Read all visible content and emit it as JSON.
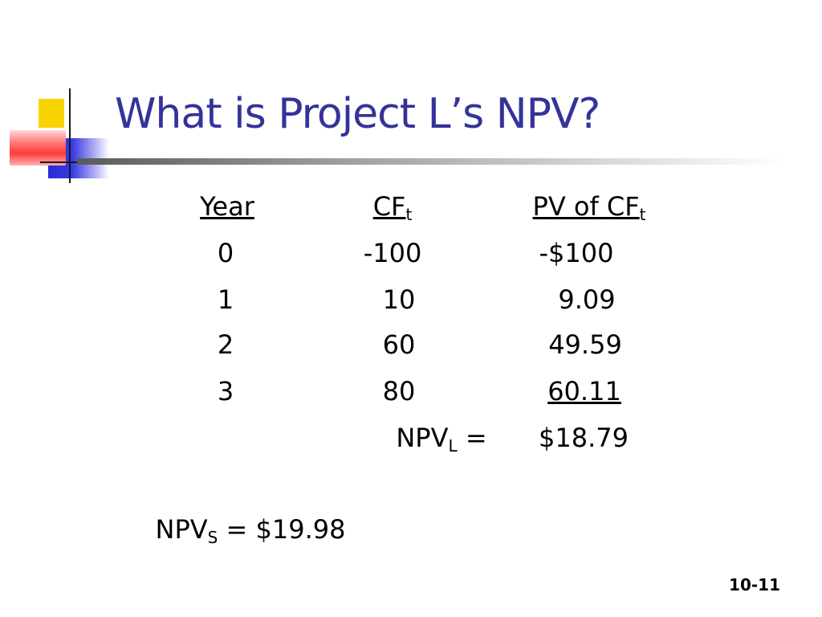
{
  "slide": {
    "title": "What is Project L’s NPV?",
    "page_number": "10-11"
  },
  "table": {
    "headers": {
      "year": "Year",
      "cf": "CF",
      "cf_sub": "t",
      "pv": "PV of CF",
      "pv_sub": "t"
    },
    "rows": [
      {
        "year": "0",
        "cf": "-100",
        "pv": "-$100"
      },
      {
        "year": "1",
        "cf": "10",
        "pv": "9.09"
      },
      {
        "year": "2",
        "cf": "60",
        "pv": "49.59"
      },
      {
        "year": "3",
        "cf": "80",
        "pv": "60.11"
      }
    ],
    "npv_l": {
      "label": "NPV",
      "sub": "L",
      "equals": "=",
      "value": "$18.79"
    }
  },
  "npv_s": {
    "label": "NPV",
    "sub": "S",
    "equals": "= $19.98"
  },
  "colors": {
    "title": "#333399",
    "logo_yellow": "#f7d300",
    "logo_blue": "#2a2ad8",
    "logo_red": "#ff3b3b"
  }
}
